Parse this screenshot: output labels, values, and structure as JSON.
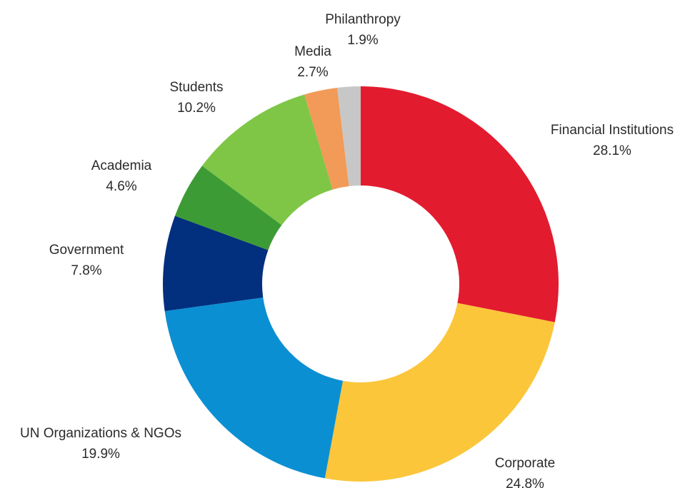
{
  "chart_data": {
    "type": "pie",
    "variant": "donut",
    "title": "",
    "start_angle_deg": 0,
    "direction": "clockwise",
    "slices": [
      {
        "label": "Financial Institutions",
        "value": 28.1,
        "value_label": "28.1%",
        "color": "#E31B2F"
      },
      {
        "label": "Corporate",
        "value": 24.8,
        "value_label": "24.8%",
        "color": "#FBC63A"
      },
      {
        "label": "UN Organizations & NGOs",
        "value": 19.9,
        "value_label": "19.9%",
        "color": "#0B8FD3"
      },
      {
        "label": "Government",
        "value": 7.8,
        "value_label": "7.8%",
        "color": "#022F7E"
      },
      {
        "label": "Academia",
        "value": 4.6,
        "value_label": "4.6%",
        "color": "#3D9B35"
      },
      {
        "label": "Students",
        "value": 10.2,
        "value_label": "10.2%",
        "color": "#7FC646"
      },
      {
        "label": "Media",
        "value": 2.7,
        "value_label": "2.7%",
        "color": "#F29A57"
      },
      {
        "label": "Philanthropy",
        "value": 1.9,
        "value_label": "1.9%",
        "color": "#C7C7C7"
      }
    ]
  }
}
